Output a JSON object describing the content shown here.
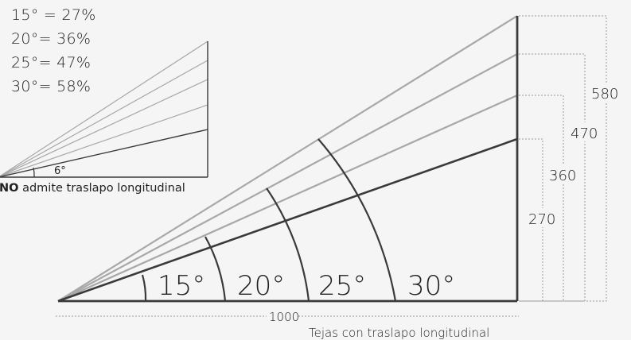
{
  "legend": [
    {
      "angle": "15°",
      "sep": " = ",
      "pct": "27%"
    },
    {
      "angle": "20°",
      "sep": "= ",
      "pct": "36%"
    },
    {
      "angle": "25°",
      "sep": "= ",
      "pct": "47%"
    },
    {
      "angle": "30°",
      "sep": "= ",
      "pct": "58%"
    }
  ],
  "small_diagram": {
    "angle_label": "6°",
    "caption_bold": "NO",
    "caption_rest": " admite traslapo longitudinal"
  },
  "main_diagram": {
    "angle_labels": [
      "15°",
      "20°",
      "25°",
      "30°"
    ],
    "heights": [
      "270",
      "360",
      "470",
      "580"
    ],
    "base_length": "1000",
    "caption": "Tejas con traslapo longitudinal"
  },
  "colors": {
    "dark_line": "#3a3a3a",
    "light_line": "#a8a8a8",
    "dotted_line": "#9a9a9a",
    "text": "#222222",
    "background": "#f4f5f4"
  }
}
